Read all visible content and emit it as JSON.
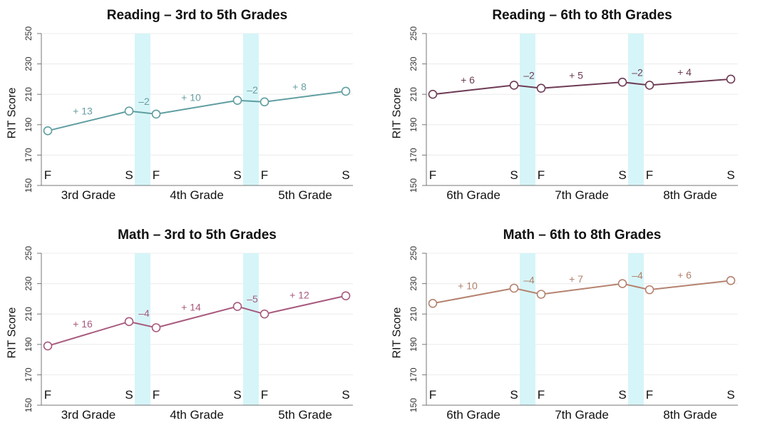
{
  "chart_data": [
    {
      "type": "line",
      "title": "Reading – 3rd to 5th Grades",
      "ylabel": "RIT Score",
      "ylim": [
        150,
        250
      ],
      "yticks": [
        150,
        170,
        190,
        210,
        230,
        250
      ],
      "x": [
        "F",
        "S",
        "F",
        "S",
        "F",
        "S"
      ],
      "grades": [
        "3rd Grade",
        "4th Grade",
        "5th Grade"
      ],
      "values": [
        186,
        199,
        197,
        206,
        205,
        212
      ],
      "changes": [
        "+ 13",
        "–2",
        "+ 10",
        "–2",
        "+ 8"
      ],
      "color": "#5f9ea0",
      "label_color": "#6a9ea4"
    },
    {
      "type": "line",
      "title": "Reading – 6th to 8th Grades",
      "ylabel": "RIT Score",
      "ylim": [
        150,
        250
      ],
      "yticks": [
        150,
        170,
        190,
        210,
        230,
        250
      ],
      "x": [
        "F",
        "S",
        "F",
        "S",
        "F",
        "S"
      ],
      "grades": [
        "6th Grade",
        "7th Grade",
        "8th Grade"
      ],
      "values": [
        210,
        216,
        214,
        218,
        216,
        220
      ],
      "changes": [
        "+ 6",
        "–2",
        "+ 5",
        "–2",
        "+ 4"
      ],
      "color": "#6e3b55",
      "label_color": "#6e3b55"
    },
    {
      "type": "line",
      "title": "Math – 3rd to 5th Grades",
      "ylabel": "RIT Score",
      "ylim": [
        150,
        250
      ],
      "yticks": [
        150,
        170,
        190,
        210,
        230,
        250
      ],
      "x": [
        "F",
        "S",
        "F",
        "S",
        "F",
        "S"
      ],
      "grades": [
        "3rd Grade",
        "4th Grade",
        "5th Grade"
      ],
      "values": [
        189,
        205,
        201,
        215,
        210,
        222
      ],
      "changes": [
        "+ 16",
        "–4",
        "+ 14",
        "–5",
        "+ 12"
      ],
      "color": "#a85a7e",
      "label_color": "#a85a7e"
    },
    {
      "type": "line",
      "title": "Math – 6th to 8th Grades",
      "ylabel": "RIT Score",
      "ylim": [
        150,
        250
      ],
      "yticks": [
        150,
        170,
        190,
        210,
        230,
        250
      ],
      "x": [
        "F",
        "S",
        "F",
        "S",
        "F",
        "S"
      ],
      "grades": [
        "6th Grade",
        "7th Grade",
        "8th Grade"
      ],
      "values": [
        217,
        227,
        223,
        230,
        226,
        232
      ],
      "changes": [
        "+ 10",
        "–4",
        "+ 7",
        "–4",
        "+ 6"
      ],
      "color": "#b5826f",
      "label_color": "#b0806c"
    }
  ]
}
